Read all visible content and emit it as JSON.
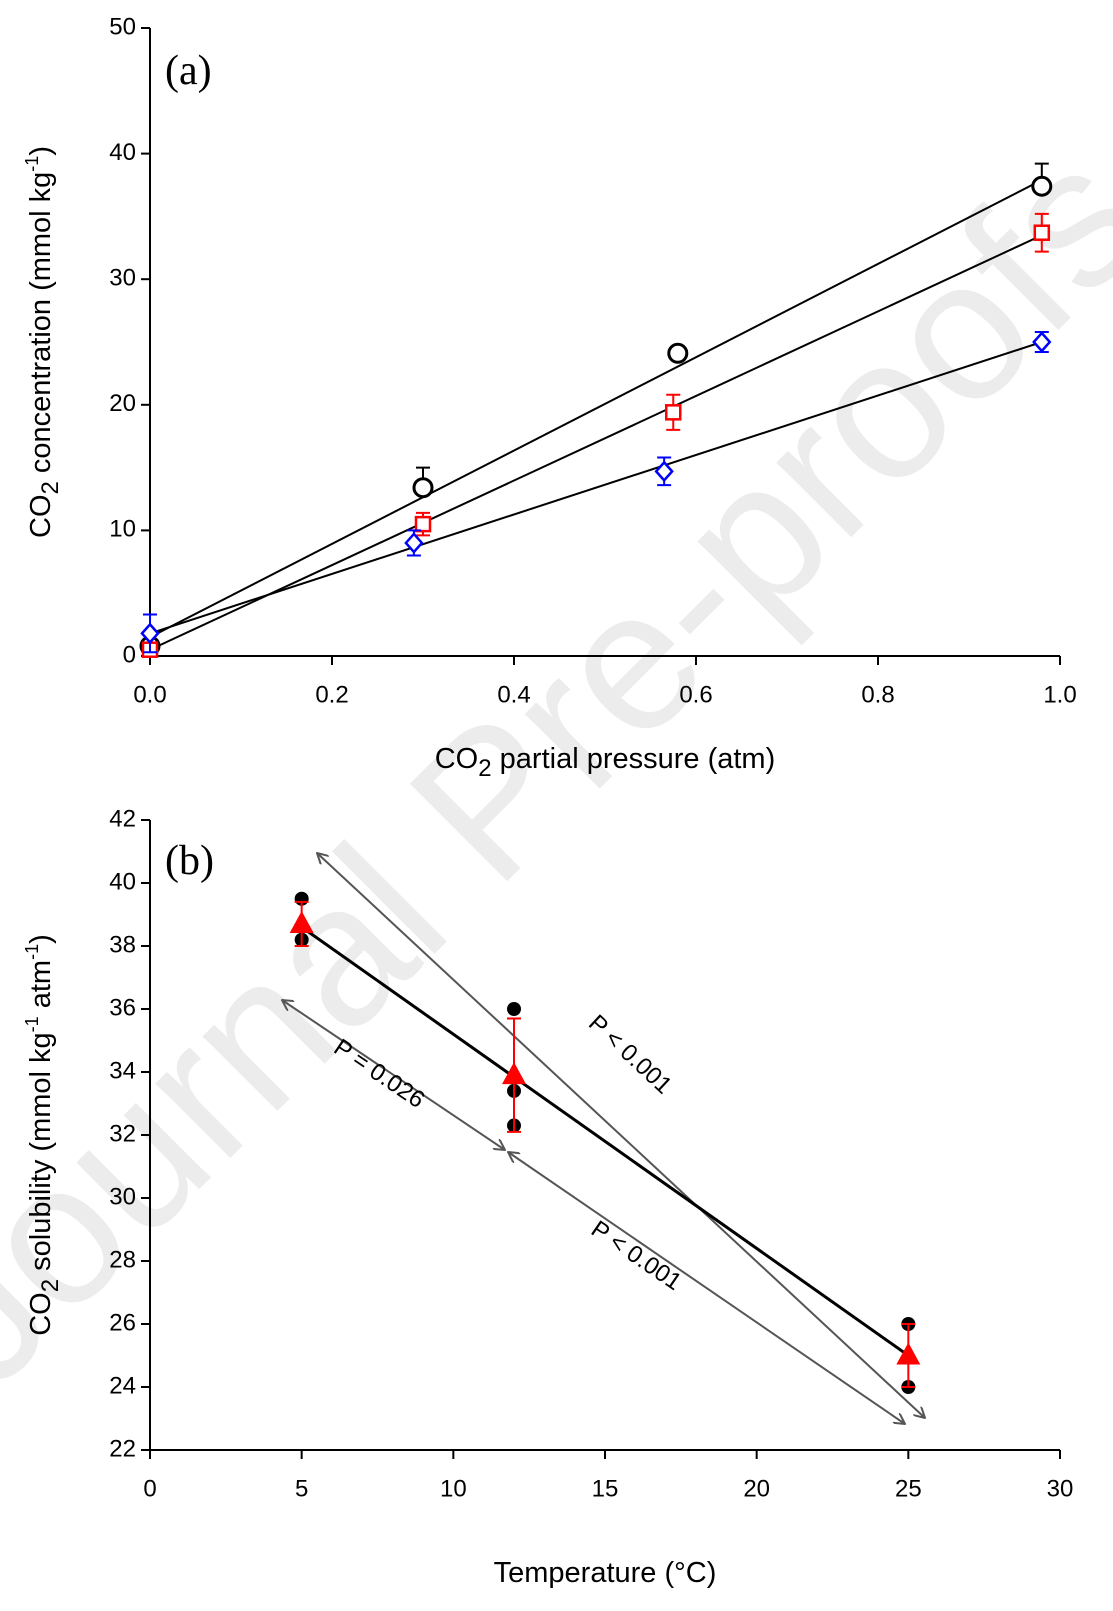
{
  "watermark": "Journal Pre-proofs",
  "chart_data": [
    {
      "type": "scatter",
      "label": "(a)",
      "xlabel": [
        "CO",
        "2",
        " partial pressure (atm)"
      ],
      "ylabel": [
        "CO",
        "2",
        " concentration (mmol kg",
        "-1",
        ")"
      ],
      "xlim": [
        0,
        1
      ],
      "ylim": [
        0,
        50
      ],
      "xticks": [
        {
          "value": 0,
          "label": "0.0"
        },
        {
          "value": 0.2,
          "label": "0.2"
        },
        {
          "value": 0.4,
          "label": "0.4"
        },
        {
          "value": 0.6,
          "label": "0.6"
        },
        {
          "value": 0.8,
          "label": "0.8"
        },
        {
          "value": 1,
          "label": "1.0"
        }
      ],
      "yticks": [
        0,
        10,
        20,
        30,
        40,
        50
      ],
      "series": [
        {
          "color": "#000000",
          "marker": "circle",
          "error_direction": "up",
          "x": [
            0,
            0.3,
            0.58,
            0.98
          ],
          "values": [
            0.8,
            13.4,
            24.1,
            37.4
          ],
          "errors": [
            0.3,
            1.6,
            0.3,
            1.8
          ]
        },
        {
          "color": "#ff0000",
          "marker": "square",
          "error_direction": "both",
          "x": [
            0,
            0.3,
            0.575,
            0.98
          ],
          "values": [
            0.5,
            10.5,
            19.4,
            33.7
          ],
          "errors": [
            0.3,
            0.9,
            1.4,
            1.5
          ]
        },
        {
          "color": "#0000ff",
          "marker": "diamond",
          "error_direction": "both",
          "x": [
            0,
            0.29,
            0.565,
            0.98
          ],
          "values": [
            1.8,
            9.0,
            14.7,
            25.0
          ],
          "errors": [
            1.5,
            1.0,
            1.1,
            0.8
          ]
        }
      ],
      "fits": [
        {
          "color": "#000000",
          "x": [
            0,
            0.98
          ],
          "values": [
            1.5,
            37.9
          ]
        },
        {
          "color": "#000000",
          "x": [
            0,
            0.98
          ],
          "values": [
            0.5,
            33.5
          ]
        },
        {
          "color": "#000000",
          "x": [
            0,
            0.98
          ],
          "values": [
            1.8,
            25.0
          ]
        }
      ]
    },
    {
      "type": "scatter",
      "label": "(b)",
      "xlabel": [
        "Temperature (°C)"
      ],
      "ylabel": [
        "CO",
        "2",
        " solubility (mmol kg",
        "-1",
        " atm",
        "-1",
        ")"
      ],
      "xlim": [
        0,
        30
      ],
      "ylim": [
        22,
        42
      ],
      "xticks": [
        0,
        5,
        10,
        15,
        20,
        25,
        30
      ],
      "yticks": [
        22,
        24,
        26,
        28,
        30,
        32,
        34,
        36,
        38,
        40,
        42
      ],
      "series": [
        {
          "color": "#000000",
          "marker": "dot",
          "x": [
            5,
            5,
            12,
            12,
            12,
            25,
            25
          ],
          "values": [
            39.5,
            38.2,
            36.0,
            33.4,
            32.3,
            26.0,
            24.0
          ]
        },
        {
          "color": "#ff0000",
          "marker": "triangle",
          "error_direction": "both",
          "x": [
            5,
            12,
            25
          ],
          "values": [
            38.7,
            33.9,
            25.0
          ],
          "errors": [
            0.7,
            1.8,
            1.0
          ]
        }
      ],
      "fits": [
        {
          "color": "#000000",
          "x": [
            5,
            25
          ],
          "values": [
            38.6,
            25.0
          ]
        }
      ],
      "annotations": [
        "P < 0.001",
        "P = 0.026",
        "P < 0.001"
      ]
    }
  ]
}
